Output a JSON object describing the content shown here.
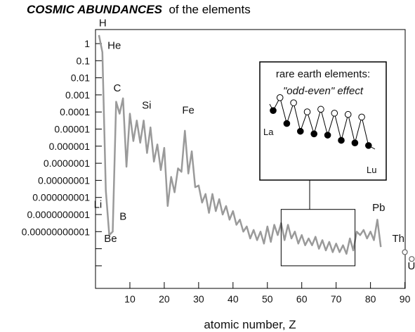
{
  "title_main": "COSMIC ABUNDANCES",
  "title_rest": "of the elements",
  "chart_data": {
    "type": "line",
    "xlabel": "atomic number, Z",
    "ylabel": "",
    "yscale": "log",
    "xlim": [
      0,
      95
    ],
    "ylim": [
      -14,
      1
    ],
    "x_ticks": [
      10,
      20,
      30,
      40,
      50,
      60,
      70,
      80,
      90
    ],
    "y_ticks": [
      {
        "exp": 0,
        "label": "1"
      },
      {
        "exp": -1,
        "label": "0.1"
      },
      {
        "exp": -2,
        "label": "0.01"
      },
      {
        "exp": -3,
        "label": "0.001"
      },
      {
        "exp": -4,
        "label": "0.0001"
      },
      {
        "exp": -5,
        "label": "0.00001"
      },
      {
        "exp": -6,
        "label": "0.000001"
      },
      {
        "exp": -7,
        "label": "0.0000001"
      },
      {
        "exp": -8,
        "label": "0.00000001"
      },
      {
        "exp": -9,
        "label": "0.000000001"
      },
      {
        "exp": -10,
        "label": "0.0000000001"
      },
      {
        "exp": -11,
        "label": "0.00000000001"
      },
      {
        "exp": -12,
        "label": ""
      },
      {
        "exp": -13,
        "label": ""
      }
    ],
    "series": [
      {
        "color": "#9a9a9a",
        "x": [
          1,
          2,
          3,
          4,
          5,
          6,
          7,
          8,
          9,
          10,
          11,
          12,
          13,
          14,
          15,
          16,
          17,
          18,
          19,
          20,
          21,
          22,
          23,
          24,
          25,
          26,
          27,
          28,
          29,
          30,
          31,
          32,
          33,
          34,
          35,
          36,
          37,
          38,
          39,
          40,
          41,
          42,
          43,
          44,
          45,
          46,
          47,
          48,
          49,
          50,
          51,
          52,
          53,
          54,
          55,
          56,
          57,
          58,
          59,
          60,
          61,
          62,
          63,
          64,
          65,
          66,
          67,
          68,
          69,
          70,
          71,
          72,
          73,
          74,
          75,
          76,
          77,
          78,
          79,
          80,
          81,
          82,
          83
        ],
        "log_y": [
          0.5,
          -0.5,
          -8.6,
          -11.2,
          -11.0,
          -3.4,
          -4.1,
          -3.2,
          -7.2,
          -4.1,
          -5.7,
          -4.5,
          -5.8,
          -4.5,
          -6.4,
          -4.9,
          -6.9,
          -5.9,
          -7.4,
          -6.1,
          -9.5,
          -7.8,
          -8.7,
          -7.3,
          -7.5,
          -5.1,
          -7.6,
          -6.3,
          -8.4,
          -8.3,
          -9.3,
          -8.8,
          -9.9,
          -8.8,
          -9.8,
          -9.1,
          -10.0,
          -9.5,
          -10.3,
          -9.8,
          -10.6,
          -10.3,
          -11.0,
          -10.7,
          -11.4,
          -10.9,
          -11.5,
          -11.0,
          -11.7,
          -10.7,
          -11.6,
          -10.6,
          -11.2,
          -10.5,
          -11.5,
          -10.6,
          -11.4,
          -11.0,
          -11.7,
          -11.2,
          -11.8,
          -11.4,
          -11.8,
          -11.3,
          -12.0,
          -11.5,
          -12.1,
          -11.6,
          -12.2,
          -11.7,
          -12.2,
          -11.8,
          -12.3,
          -11.4,
          -12.1,
          -11.0,
          -11.2,
          -10.9,
          -11.4,
          -11.0,
          -11.5,
          -10.3,
          -11.9
        ]
      }
    ],
    "open_points": [
      {
        "x": 90,
        "log_y": -12.2
      },
      {
        "x": 92,
        "log_y": -12.6
      }
    ],
    "annotations": [
      {
        "text": "H",
        "x": 1,
        "log_y": 1.0
      },
      {
        "text": "He",
        "x": 3.5,
        "log_y": -0.3
      },
      {
        "text": "Li",
        "x": -0.5,
        "log_y": -9.6
      },
      {
        "text": "Be",
        "x": 2.5,
        "log_y": -11.6
      },
      {
        "text": "B",
        "x": 7,
        "log_y": -10.3
      },
      {
        "text": "C",
        "x": 5.2,
        "log_y": -2.8
      },
      {
        "text": "Si",
        "x": 13.5,
        "log_y": -3.8
      },
      {
        "text": "Fe",
        "x": 25.2,
        "log_y": -4.1
      },
      {
        "text": "Pb",
        "x": 80.5,
        "log_y": -9.8
      },
      {
        "text": "Th",
        "x": 86.3,
        "log_y": -11.6
      },
      {
        "text": "U",
        "x": 90.8,
        "log_y": -13.2
      }
    ],
    "zoom_box": {
      "x": [
        54,
        75.5
      ],
      "log_y": [
        -9.7,
        -13.0
      ]
    }
  },
  "inset": {
    "title": "rare earth elements:",
    "subtitle": "\"odd-even\" effect",
    "label_left": "La",
    "label_right": "Lu",
    "points": [
      {
        "v": 4.0,
        "open": false
      },
      {
        "v": 6.0,
        "open": true
      },
      {
        "v": 2.0,
        "open": false
      },
      {
        "v": 5.2,
        "open": true
      },
      {
        "v": 0.8,
        "open": false
      },
      {
        "v": 3.8,
        "open": true
      },
      {
        "v": 0.4,
        "open": false
      },
      {
        "v": 4.2,
        "open": true
      },
      {
        "v": 0.2,
        "open": false
      },
      {
        "v": 3.6,
        "open": true
      },
      {
        "v": -0.6,
        "open": false
      },
      {
        "v": 3.4,
        "open": true
      },
      {
        "v": -1.0,
        "open": false
      },
      {
        "v": 3.0,
        "open": true
      },
      {
        "v": -1.4,
        "open": false
      }
    ]
  }
}
